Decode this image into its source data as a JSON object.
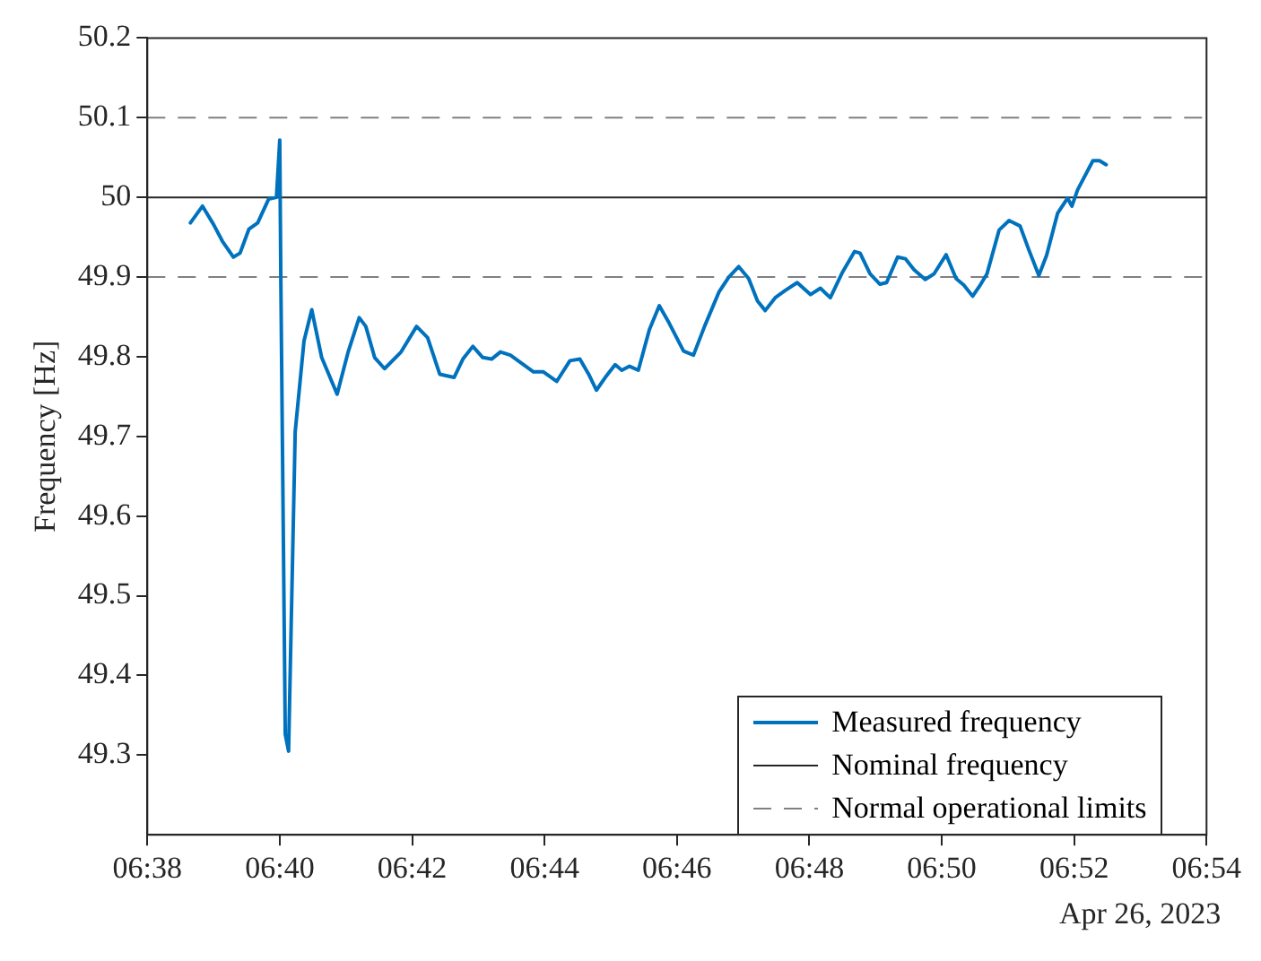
{
  "chart_data": {
    "type": "line",
    "ylabel": "Frequency [Hz]",
    "annotations": [
      "Apr 26, 2023"
    ],
    "x": [
      "2023-04-26T06:38:39",
      "2023-04-26T06:38:50",
      "2023-04-26T06:39:00",
      "2023-04-26T06:39:08",
      "2023-04-26T06:39:18",
      "2023-04-26T06:39:24",
      "2023-04-26T06:39:32",
      "2023-04-26T06:39:40",
      "2023-04-26T06:39:50",
      "2023-04-26T06:39:57",
      "2023-04-26T06:40:00",
      "2023-04-26T06:40:01",
      "2023-04-26T06:40:05",
      "2023-04-26T06:40:08",
      "2023-04-26T06:40:14",
      "2023-04-26T06:40:22",
      "2023-04-26T06:40:29",
      "2023-04-26T06:40:38",
      "2023-04-26T06:40:52",
      "2023-04-26T06:41:02",
      "2023-04-26T06:41:12",
      "2023-04-26T06:41:18",
      "2023-04-26T06:41:26",
      "2023-04-26T06:41:35",
      "2023-04-26T06:41:50",
      "2023-04-26T06:42:04",
      "2023-04-26T06:42:14",
      "2023-04-26T06:42:25",
      "2023-04-26T06:42:38",
      "2023-04-26T06:42:46",
      "2023-04-26T06:42:55",
      "2023-04-26T06:43:04",
      "2023-04-26T06:43:12",
      "2023-04-26T06:43:20",
      "2023-04-26T06:43:29",
      "2023-04-26T06:43:50",
      "2023-04-26T06:43:59",
      "2023-04-26T06:44:11",
      "2023-04-26T06:44:23",
      "2023-04-26T06:44:32",
      "2023-04-26T06:44:40",
      "2023-04-26T06:44:47",
      "2023-04-26T06:44:55",
      "2023-04-26T06:45:04",
      "2023-04-26T06:45:10",
      "2023-04-26T06:45:17",
      "2023-04-26T06:45:25",
      "2023-04-26T06:45:35",
      "2023-04-26T06:45:44",
      "2023-04-26T06:45:53",
      "2023-04-26T06:46:06",
      "2023-04-26T06:46:15",
      "2023-04-26T06:46:25",
      "2023-04-26T06:46:38",
      "2023-04-26T06:46:47",
      "2023-04-26T06:46:56",
      "2023-04-26T06:47:05",
      "2023-04-26T06:47:13",
      "2023-04-26T06:47:20",
      "2023-04-26T06:47:29",
      "2023-04-26T06:47:38",
      "2023-04-26T06:47:49",
      "2023-04-26T06:48:01",
      "2023-04-26T06:48:10",
      "2023-04-26T06:48:19",
      "2023-04-26T06:48:30",
      "2023-04-26T06:48:41",
      "2023-04-26T06:48:46",
      "2023-04-26T06:48:55",
      "2023-04-26T06:49:04",
      "2023-04-26T06:49:10",
      "2023-04-26T06:49:20",
      "2023-04-26T06:49:27",
      "2023-04-26T06:49:35",
      "2023-04-26T06:49:45",
      "2023-04-26T06:49:53",
      "2023-04-26T06:50:04",
      "2023-04-26T06:50:13",
      "2023-04-26T06:50:20",
      "2023-04-26T06:50:28",
      "2023-04-26T06:50:34",
      "2023-04-26T06:50:41",
      "2023-04-26T06:50:52",
      "2023-04-26T06:51:01",
      "2023-04-26T06:51:11",
      "2023-04-26T06:51:19",
      "2023-04-26T06:51:28",
      "2023-04-26T06:51:35",
      "2023-04-26T06:51:45",
      "2023-04-26T06:51:54",
      "2023-04-26T06:51:58",
      "2023-04-26T06:52:03",
      "2023-04-26T06:52:17",
      "2023-04-26T06:52:23",
      "2023-04-26T06:52:29"
    ],
    "series": [
      {
        "name": "Measured frequency",
        "color": "#0072bd",
        "values": [
          49.968,
          49.989,
          49.966,
          49.945,
          49.925,
          49.93,
          49.96,
          49.968,
          49.998,
          50.0,
          50.072,
          49.893,
          49.326,
          49.305,
          49.706,
          49.82,
          49.859,
          49.799,
          49.753,
          49.806,
          49.849,
          49.838,
          49.799,
          49.785,
          49.806,
          49.838,
          49.824,
          49.778,
          49.774,
          49.797,
          49.813,
          49.799,
          49.797,
          49.806,
          49.802,
          49.781,
          49.781,
          49.769,
          49.795,
          49.797,
          49.778,
          49.758,
          49.774,
          49.79,
          49.783,
          49.788,
          49.783,
          49.834,
          49.864,
          49.842,
          49.807,
          49.802,
          49.838,
          49.881,
          49.9,
          49.913,
          49.898,
          49.87,
          49.858,
          49.874,
          49.883,
          49.893,
          49.878,
          49.886,
          49.874,
          49.906,
          49.932,
          49.93,
          49.904,
          49.891,
          49.893,
          49.925,
          49.923,
          49.909,
          49.897,
          49.904,
          49.928,
          49.898,
          49.89,
          49.876,
          49.888,
          49.904,
          49.959,
          49.971,
          49.964,
          49.934,
          49.902,
          49.927,
          49.98,
          49.999,
          49.989,
          50.009,
          50.046,
          50.046,
          50.041
        ]
      }
    ],
    "ref_lines": [
      {
        "axis": "y",
        "value": 50,
        "label": "Nominal frequency",
        "color": "#262626",
        "line_style": "solid"
      },
      {
        "axis": "y",
        "value": 50.1,
        "label": "Normal operational limits",
        "color": "#808080",
        "line_style": "dashed"
      },
      {
        "axis": "y",
        "value": 49.9,
        "label": null,
        "color": "#808080",
        "line_style": "dashed"
      }
    ],
    "xlim": [
      "2023-04-26T06:38",
      "2023-04-26T06:54"
    ],
    "xticks": [
      {
        "value": "2023-04-26T06:38",
        "label": "06:38"
      },
      {
        "value": "2023-04-26T06:40",
        "label": "06:40"
      },
      {
        "value": "2023-04-26T06:42",
        "label": "06:42"
      },
      {
        "value": "2023-04-26T06:44",
        "label": "06:44"
      },
      {
        "value": "2023-04-26T06:46",
        "label": "06:46"
      },
      {
        "value": "2023-04-26T06:48",
        "label": "06:48"
      },
      {
        "value": "2023-04-26T06:50",
        "label": "06:50"
      },
      {
        "value": "2023-04-26T06:52",
        "label": "06:52"
      },
      {
        "value": "2023-04-26T06:54",
        "label": "06:54"
      }
    ],
    "ylim": [
      49.2,
      50.2
    ],
    "yticks": [
      49.3,
      49.4,
      49.5,
      49.6,
      49.7,
      49.8,
      49.9,
      50,
      50.1,
      50.2
    ],
    "grid": false,
    "legend": "bottom right",
    "marker": "none",
    "line_style": "solid"
  }
}
